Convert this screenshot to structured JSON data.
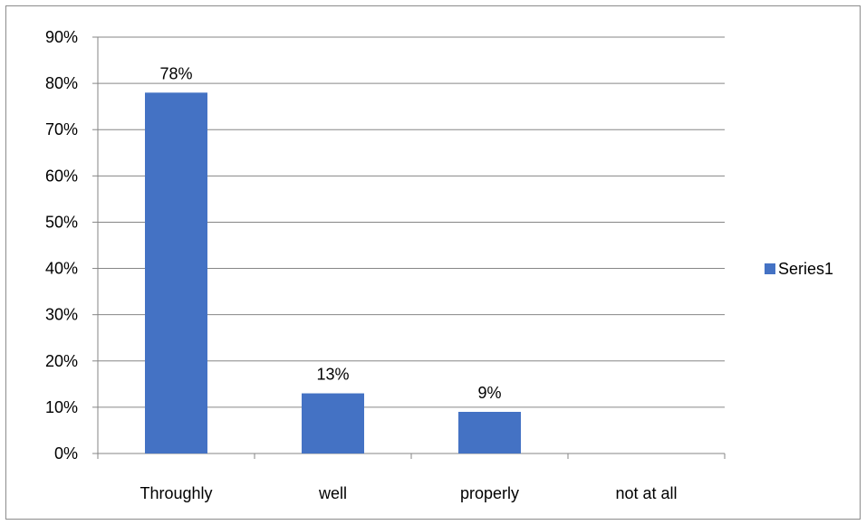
{
  "chart_data": {
    "type": "bar",
    "categories": [
      "Throughly",
      "well",
      "properly",
      "not at all"
    ],
    "series": [
      {
        "name": "Series1",
        "values": [
          78,
          13,
          9,
          0
        ],
        "color": "#4472c4",
        "data_labels": [
          "78%",
          "13%",
          "9%",
          ""
        ]
      }
    ],
    "ylim": [
      0,
      90
    ],
    "y_ticks": [
      0,
      10,
      20,
      30,
      40,
      50,
      60,
      70,
      80,
      90
    ],
    "y_tick_labels": [
      "0%",
      "10%",
      "20%",
      "30%",
      "40%",
      "50%",
      "60%",
      "70%",
      "80%",
      "90%"
    ],
    "grid": true,
    "legend": {
      "position": "right",
      "entries": [
        "Series1"
      ]
    },
    "colors": {
      "bar": "#4472c4",
      "gridline": "#868686",
      "axis": "#868686"
    }
  }
}
